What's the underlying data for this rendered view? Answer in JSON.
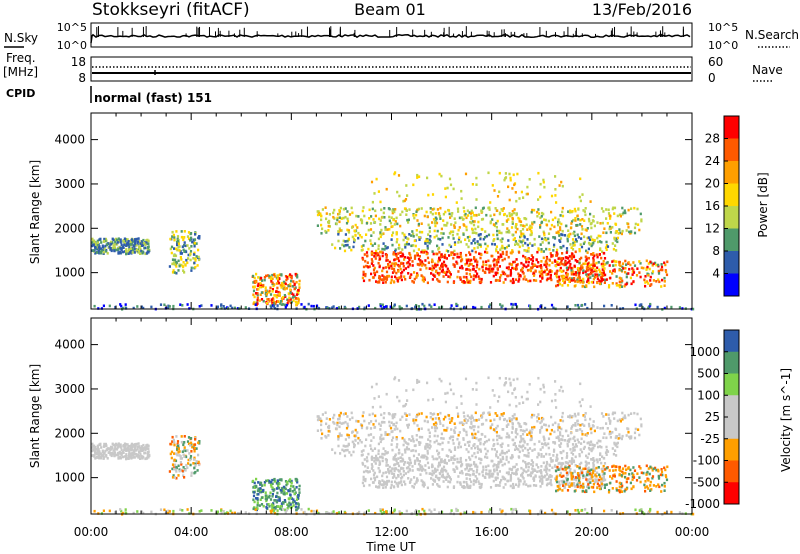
{
  "header": {
    "station": "Stokkseyri (fitACF)",
    "beam": "Beam 01",
    "date": "13/Feb/2016"
  },
  "noise_panel": {
    "left_label": "N.Sky",
    "right_label": "N.Search",
    "left_ticks": [
      "10^5",
      "10^0"
    ],
    "right_ticks": [
      "10^5",
      "10^0"
    ]
  },
  "freq_panel": {
    "left_label_line1": "Freq.",
    "left_label_line2": "[MHz]",
    "right_label": "Nave",
    "left_ticks": [
      "18",
      "8"
    ],
    "right_ticks": [
      "60",
      "0"
    ]
  },
  "cpid": {
    "label": "CPID",
    "text": "normal (fast) 151"
  },
  "time_axis": {
    "label": "Time UT",
    "ticks": [
      "00:00",
      "04:00",
      "08:00",
      "12:00",
      "16:00",
      "20:00",
      "00:00"
    ]
  },
  "chart_data": [
    {
      "type": "heatmap",
      "name": "power",
      "ylabel": "Slant Range [km]",
      "x_range_hours": [
        0,
        24
      ],
      "ylim": [
        180,
        4600
      ],
      "yticks": [
        1000,
        2000,
        3000,
        4000
      ],
      "colorbar": {
        "label": "Power [dB]",
        "ticks": [
          "28",
          "24",
          "20",
          "16",
          "12",
          "8",
          "4"
        ],
        "colors": [
          "#ff0000",
          "#ff5a00",
          "#ff9f00",
          "#ffd700",
          "#bfd64a",
          "#4f9a6a",
          "#2e5cab",
          "#0000ff"
        ]
      },
      "features": [
        {
          "time": [
            0.0,
            2.3
          ],
          "range": [
            1450,
            1800
          ],
          "level": "low"
        },
        {
          "time": [
            3.1,
            4.3
          ],
          "range": [
            1000,
            2000
          ],
          "level": "low"
        },
        {
          "time": [
            6.4,
            8.3
          ],
          "range": [
            300,
            1000
          ],
          "level": "high"
        },
        {
          "time": [
            8.8,
            22.0
          ],
          "range": [
            1900,
            2500
          ],
          "level": "medium"
        },
        {
          "time": [
            10.8,
            20.5
          ],
          "range": [
            800,
            1600
          ],
          "level": "high"
        },
        {
          "time": [
            18.5,
            23.0
          ],
          "range": [
            700,
            1300
          ],
          "level": "medium"
        }
      ]
    },
    {
      "type": "heatmap",
      "name": "velocity",
      "ylabel": "Slant Range [km]",
      "x_range_hours": [
        0,
        24
      ],
      "ylim": [
        180,
        4600
      ],
      "yticks": [
        1000,
        2000,
        3000,
        4000
      ],
      "colorbar": {
        "label": "Velocity [m s^-1]",
        "ticks": [
          "1000",
          "500",
          "100",
          "25",
          "-25",
          "-100",
          "-500",
          "-1000"
        ],
        "colors": [
          "#2e5cab",
          "#4f9a6a",
          "#7fd34a",
          "#c8c8c8",
          "#c8c8c8",
          "#ff9f00",
          "#ff5a00",
          "#ff0000"
        ]
      },
      "features": [
        {
          "time": [
            0.0,
            2.3
          ],
          "range": [
            1450,
            1800
          ],
          "level": "ground-scatter"
        },
        {
          "time": [
            6.4,
            8.3
          ],
          "range": [
            300,
            1000
          ],
          "level": "positive"
        },
        {
          "time": [
            8.8,
            22.0
          ],
          "range": [
            800,
            2500
          ],
          "level": "ground-scatter"
        },
        {
          "time": [
            18.5,
            23.0
          ],
          "range": [
            700,
            1300
          ],
          "level": "negative"
        }
      ]
    }
  ]
}
